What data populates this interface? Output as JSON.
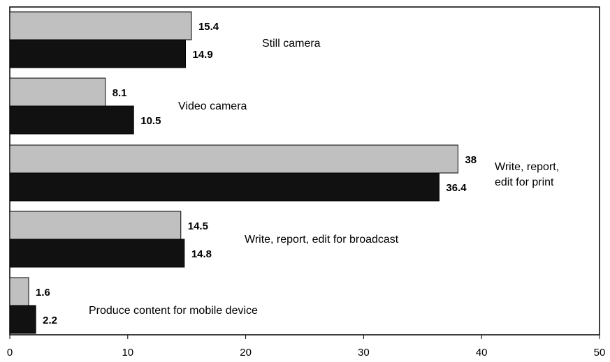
{
  "chart_data": {
    "type": "bar",
    "orientation": "horizontal",
    "categories": [
      "Still camera",
      "Video camera",
      "Write, report, edit for print",
      "Write, report, edit for broadcast",
      "Produce content for mobile device"
    ],
    "category_lines": [
      [
        "Still camera"
      ],
      [
        "Video camera"
      ],
      [
        "Write, report,",
        "edit for print"
      ],
      [
        "Write, report, edit for broadcast"
      ],
      [
        "Produce content for mobile device"
      ]
    ],
    "series": [
      {
        "color": "#c0c0c0",
        "values": [
          15.4,
          8.1,
          38,
          14.5,
          1.6
        ],
        "labels": [
          "15.4",
          "8.1",
          "38",
          "14.5",
          "1.6"
        ]
      },
      {
        "color": "#111111",
        "values": [
          14.9,
          10.5,
          36.4,
          14.8,
          2.2
        ],
        "labels": [
          "14.9",
          "10.5",
          "36.4",
          "14.8",
          "2.2"
        ]
      }
    ],
    "xlim": [
      0,
      50
    ],
    "xticks": [
      "0",
      "10",
      "20",
      "30",
      "40",
      "50"
    ],
    "grid": false,
    "legend": "none",
    "title": "",
    "xlabel": "",
    "ylabel": ""
  }
}
